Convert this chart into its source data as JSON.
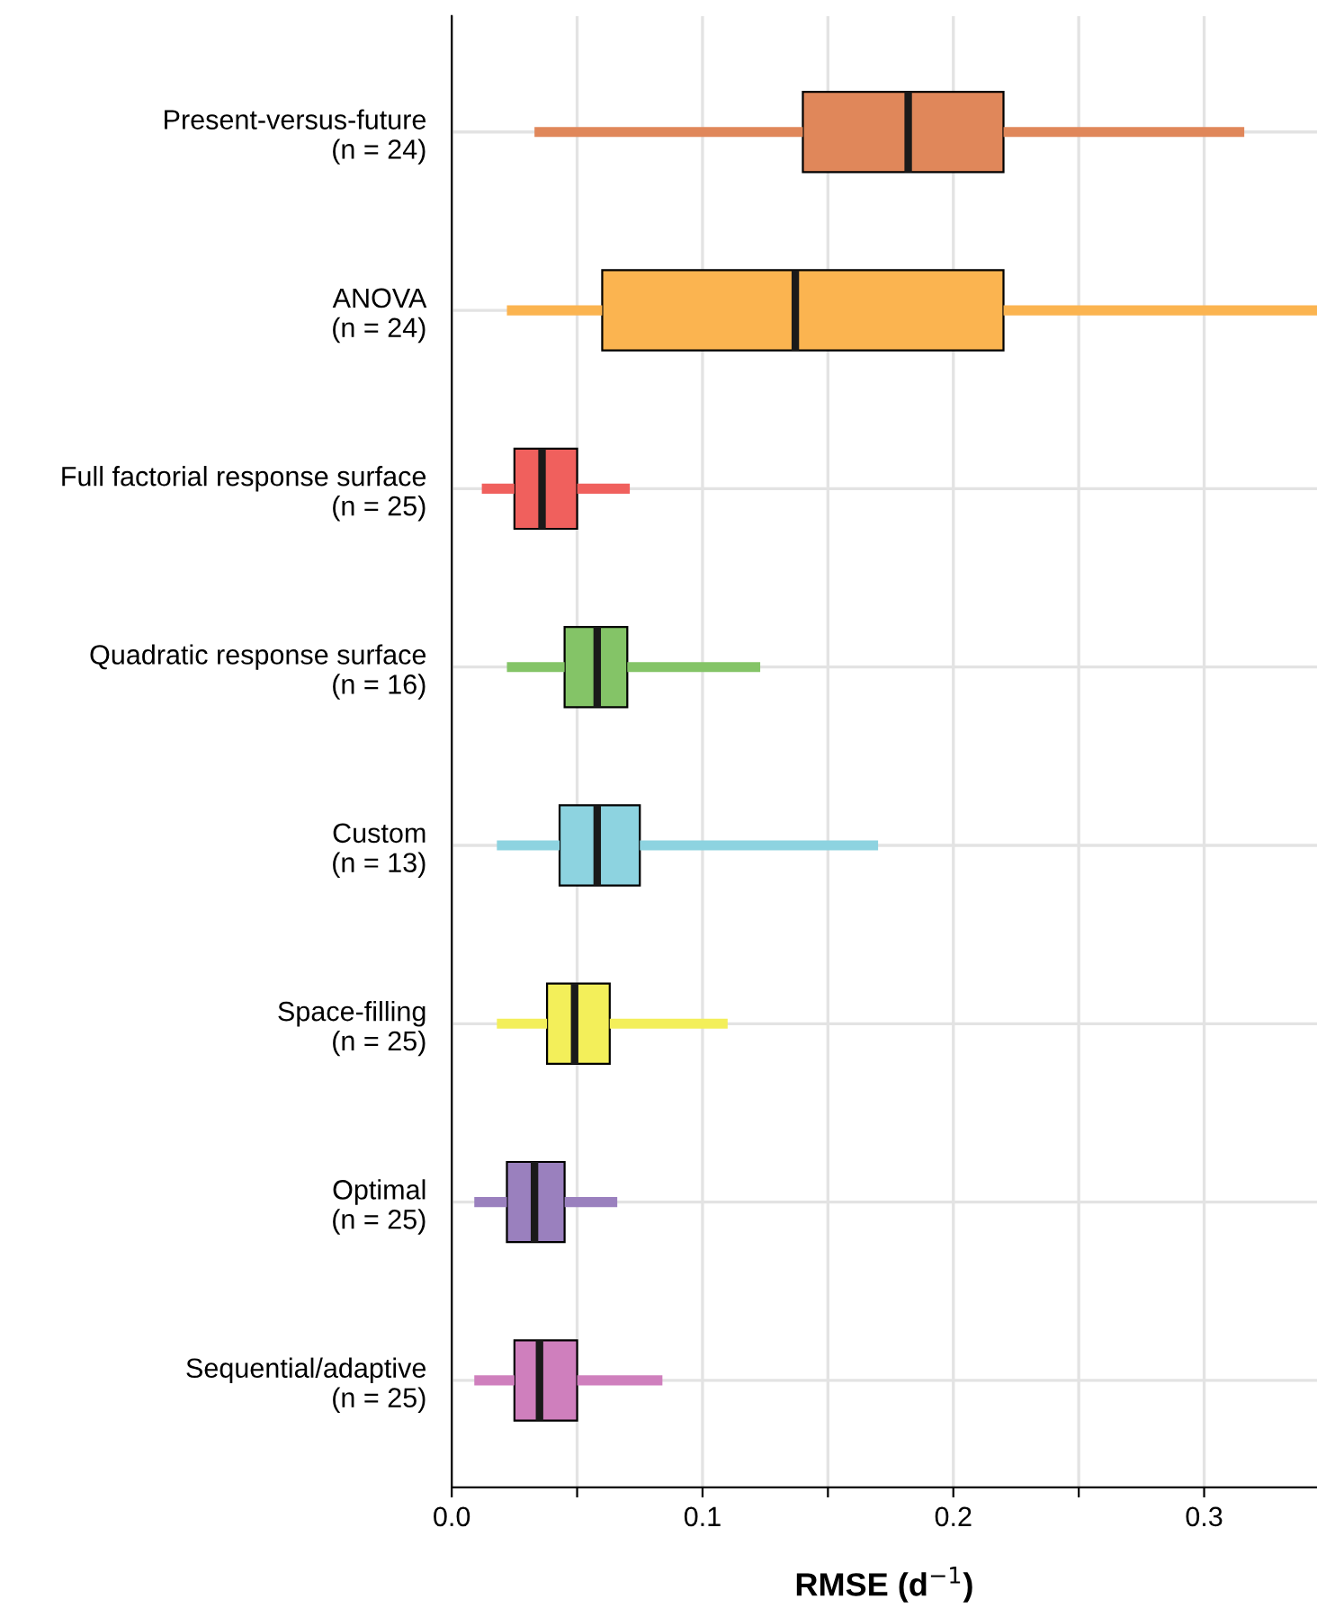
{
  "chart_data": {
    "type": "box",
    "orientation": "horizontal",
    "xlabel": "RMSE (d$^{−1}$)",
    "categories": [
      "Present-versus-future\n(n = 24)",
      "ANOVA\n(n = 24)",
      "Full factorial response surface\n(n = 25)",
      "Quadratic response surface\n(n = 16)",
      "Custom\n(n = 13)",
      "Space-filling\n(n = 25)",
      "Optimal\n(n = 25)",
      "Sequential/adaptive\n(n = 25)"
    ],
    "colors": [
      "#e0875a",
      "#fbb450",
      "#f0605d",
      "#84c467",
      "#8dd3e0",
      "#f3ef5a",
      "#9a80be",
      "#cf7fbd"
    ],
    "boxes": [
      {
        "low": 0.033,
        "q1": 0.14,
        "median": 0.182,
        "q3": 0.22,
        "high": 0.316
      },
      {
        "low": 0.022,
        "q1": 0.06,
        "median": 0.137,
        "q3": 0.22,
        "high": 0.345
      },
      {
        "low": 0.012,
        "q1": 0.025,
        "median": 0.036,
        "q3": 0.05,
        "high": 0.071
      },
      {
        "low": 0.022,
        "q1": 0.045,
        "median": 0.058,
        "q3": 0.07,
        "high": 0.123
      },
      {
        "low": 0.018,
        "q1": 0.043,
        "median": 0.058,
        "q3": 0.075,
        "high": 0.17
      },
      {
        "low": 0.018,
        "q1": 0.038,
        "median": 0.049,
        "q3": 0.063,
        "high": 0.11
      },
      {
        "low": 0.009,
        "q1": 0.022,
        "median": 0.033,
        "q3": 0.045,
        "high": 0.066
      },
      {
        "low": 0.009,
        "q1": 0.025,
        "median": 0.035,
        "q3": 0.05,
        "high": 0.084
      }
    ],
    "xlim": [
      0,
      0.345
    ],
    "xticks": [
      {
        "value": 0,
        "label": "0.0"
      },
      {
        "value": 0.05,
        "label": null
      },
      0.1,
      {
        "value": 0.15,
        "label": null
      },
      0.2,
      {
        "value": 0.25,
        "label": null
      },
      0.3
    ],
    "grid": true
  }
}
